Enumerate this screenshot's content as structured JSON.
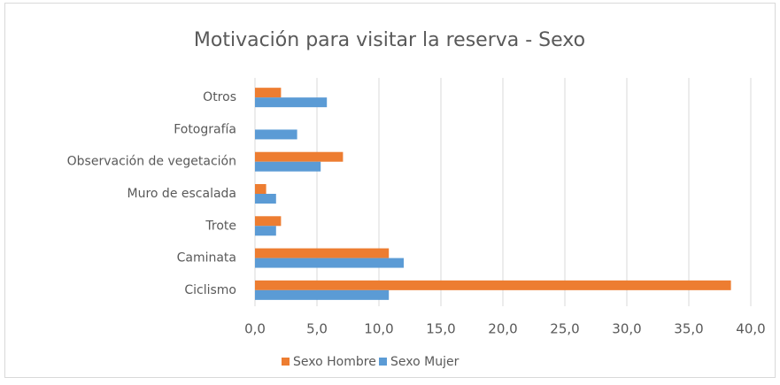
{
  "chart_data": {
    "type": "hbar",
    "title": "Motivación para visitar la reserva - Sexo",
    "categories": [
      "Otros",
      "Fotografía",
      "Observación de vegetación",
      "Muro de escalada",
      "Trote",
      "Caminata",
      "Ciclismo"
    ],
    "series": [
      {
        "name": "Sexo Hombre",
        "color": "#ED7D31",
        "values": [
          2.1,
          0,
          7.1,
          0.9,
          2.1,
          10.8,
          38.4
        ]
      },
      {
        "name": "Sexo Mujer",
        "color": "#5B9BD5",
        "values": [
          5.8,
          3.4,
          5.3,
          1.7,
          1.7,
          12.0,
          10.8
        ]
      }
    ],
    "xlim": [
      0,
      40
    ],
    "xticks": [
      {
        "value": 0,
        "label": "0,0"
      },
      {
        "value": 5,
        "label": "5,0"
      },
      {
        "value": 10,
        "label": "10,0"
      },
      {
        "value": 15,
        "label": "15,0"
      },
      {
        "value": 20,
        "label": "20,0"
      },
      {
        "value": 25,
        "label": "25,0"
      },
      {
        "value": 30,
        "label": "30,0"
      },
      {
        "value": 35,
        "label": "35,0"
      },
      {
        "value": 40,
        "label": "40,0"
      }
    ],
    "grid": true,
    "legend": "bottom"
  }
}
